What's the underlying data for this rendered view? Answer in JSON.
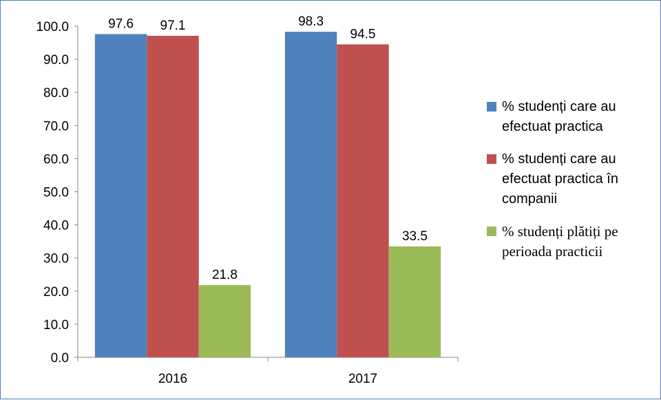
{
  "chart_data": {
    "type": "bar",
    "categories": [
      "2016",
      "2017"
    ],
    "series": [
      {
        "name": "% studenți care au efectuat practica",
        "values": [
          97.6,
          98.3
        ],
        "color": "#4f81bd"
      },
      {
        "name": "% studenți care au efectuat practica în companii",
        "values": [
          97.1,
          94.5
        ],
        "color": "#c0504d"
      },
      {
        "name": "% studenți plătiți pe perioada practicii",
        "values": [
          21.8,
          33.5
        ],
        "color": "#9bbb59"
      }
    ],
    "ylim": [
      0,
      100
    ],
    "yticks": [
      "0.0",
      "10.0",
      "20.0",
      "30.0",
      "40.0",
      "50.0",
      "60.0",
      "70.0",
      "80.0",
      "90.0",
      "100.0"
    ],
    "data_labels": [
      [
        "97.6",
        "98.3"
      ],
      [
        "97.1",
        "94.5"
      ],
      [
        "21.8",
        "33.5"
      ]
    ],
    "legend_position": "right",
    "grid": false
  }
}
